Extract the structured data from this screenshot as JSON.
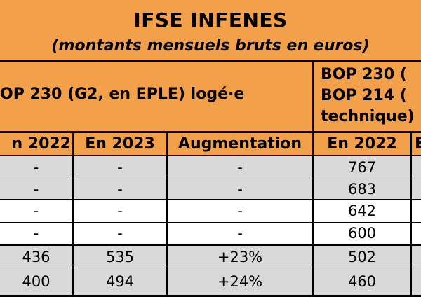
{
  "title": "IFSE INFENES",
  "subtitle": "(montants mensuels bruts en euros)",
  "group_left": "OP 230 (G2, en EPLE) logé·e",
  "group_right_lines": [
    "BOP 230 (",
    "BOP 214 (",
    "technique)"
  ],
  "columns": [
    "n 2022",
    "En 2023",
    "Augmentation",
    "En 2022",
    "E"
  ],
  "rows": [
    [
      "-",
      "-",
      "-",
      "767"
    ],
    [
      "-",
      "-",
      "-",
      "683"
    ],
    [
      "-",
      "-",
      "-",
      "642"
    ],
    [
      "-",
      "-",
      "-",
      "600"
    ],
    [
      "436",
      "535",
      "+23%",
      "502"
    ],
    [
      "400",
      "494",
      "+24%",
      "460"
    ]
  ],
  "colors": {
    "header_orange": "#f3a04a",
    "row_grey": "#d9d9d9",
    "row_white": "#ffffff",
    "border": "#000000"
  }
}
